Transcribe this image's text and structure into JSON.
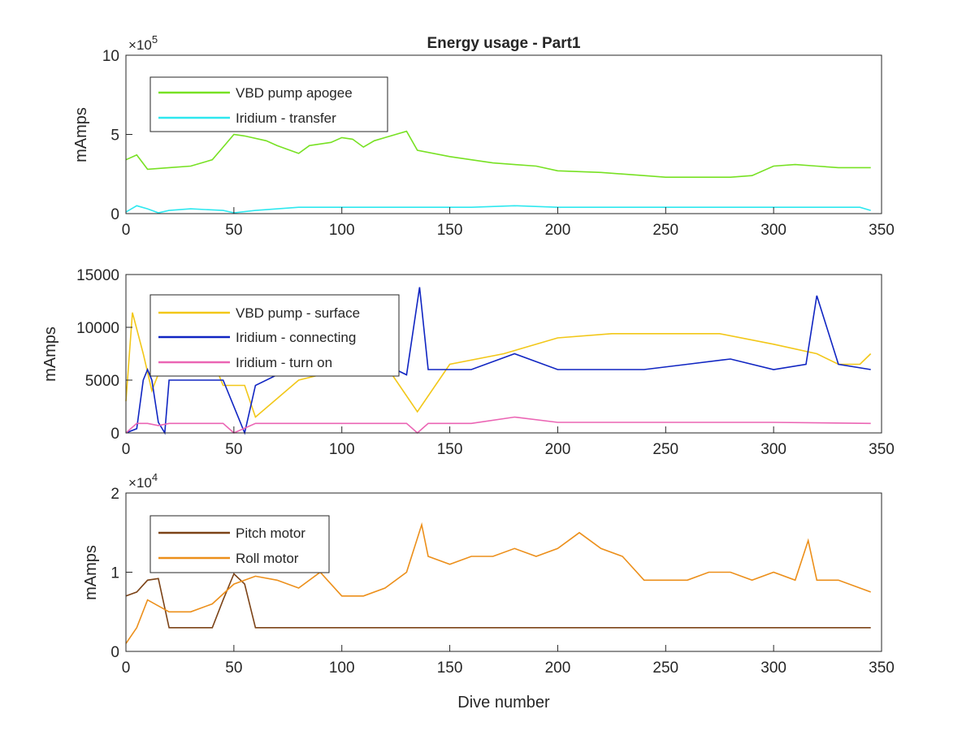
{
  "chart_data": [
    {
      "type": "line",
      "title": "Energy usage - Part1",
      "ylabel": "mAmps",
      "xlabel": "",
      "xlim": [
        0,
        350
      ],
      "ylim": [
        0,
        1000000
      ],
      "x_ticks": [
        "0",
        "50",
        "100",
        "150",
        "200",
        "250",
        "300",
        "350"
      ],
      "y_ticks": [
        "0",
        "5",
        "10"
      ],
      "y_exponent": "10",
      "y_exponent_power": "5",
      "legend_position": "top-left",
      "series": [
        {
          "name": "VBD pump apogee",
          "color": "#77e123",
          "x": [
            0,
            5,
            10,
            20,
            30,
            40,
            45,
            50,
            55,
            65,
            70,
            80,
            85,
            95,
            100,
            105,
            110,
            115,
            120,
            125,
            130,
            135,
            150,
            160,
            170,
            180,
            190,
            200,
            220,
            240,
            250,
            260,
            280,
            290,
            300,
            310,
            320,
            330,
            340,
            345
          ],
          "y": [
            340000,
            370000,
            280000,
            290000,
            300000,
            340000,
            420000,
            500000,
            490000,
            460000,
            430000,
            380000,
            430000,
            450000,
            480000,
            470000,
            420000,
            460000,
            480000,
            500000,
            520000,
            400000,
            360000,
            340000,
            320000,
            310000,
            300000,
            270000,
            260000,
            240000,
            230000,
            230000,
            230000,
            240000,
            300000,
            310000,
            300000,
            290000,
            290000,
            290000
          ]
        },
        {
          "name": "Iridium - transfer",
          "color": "#2ee8ef",
          "x": [
            0,
            5,
            10,
            15,
            20,
            30,
            45,
            50,
            60,
            80,
            100,
            120,
            140,
            160,
            180,
            200,
            220,
            240,
            260,
            280,
            300,
            320,
            340,
            345
          ],
          "y": [
            10000,
            50000,
            30000,
            5000,
            20000,
            30000,
            20000,
            5000,
            20000,
            40000,
            40000,
            40000,
            40000,
            40000,
            50000,
            40000,
            40000,
            40000,
            40000,
            40000,
            40000,
            40000,
            40000,
            20000
          ]
        }
      ]
    },
    {
      "type": "line",
      "title": "",
      "ylabel": "mAmps",
      "xlabel": "",
      "xlim": [
        0,
        350
      ],
      "ylim": [
        0,
        15000
      ],
      "x_ticks": [
        "0",
        "50",
        "100",
        "150",
        "200",
        "250",
        "300",
        "350"
      ],
      "y_ticks": [
        "0",
        "5000",
        "10000",
        "15000"
      ],
      "legend_position": "top-left",
      "series": [
        {
          "name": "VBD pump - surface",
          "color": "#f2c718",
          "x": [
            0,
            3,
            8,
            12,
            20,
            30,
            40,
            45,
            50,
            55,
            60,
            80,
            100,
            120,
            135,
            150,
            175,
            200,
            225,
            250,
            275,
            300,
            320,
            330,
            340,
            345
          ],
          "y": [
            3000,
            11400,
            7500,
            4000,
            8200,
            7000,
            7000,
            4500,
            4500,
            4500,
            1500,
            5000,
            6000,
            6500,
            2000,
            6500,
            7500,
            9000,
            9400,
            9400,
            9400,
            8400,
            7500,
            6500,
            6500,
            7500
          ]
        },
        {
          "name": "Iridium - connecting",
          "color": "#1025c2",
          "x": [
            0,
            5,
            8,
            10,
            12,
            15,
            18,
            20,
            30,
            45,
            55,
            60,
            70,
            80,
            100,
            120,
            130,
            136,
            140,
            160,
            180,
            200,
            220,
            240,
            260,
            280,
            300,
            315,
            320,
            330,
            345
          ],
          "y": [
            0,
            400,
            5000,
            6000,
            5000,
            1000,
            0,
            5000,
            5000,
            5000,
            0,
            4500,
            5500,
            5500,
            6500,
            6500,
            5500,
            13800,
            6000,
            6000,
            7500,
            6000,
            6000,
            6000,
            6500,
            7000,
            6000,
            6500,
            13000,
            6500,
            6000
          ]
        },
        {
          "name": "Iridium - turn on",
          "color": "#eb65b4",
          "x": [
            0,
            5,
            10,
            15,
            20,
            30,
            45,
            50,
            60,
            80,
            100,
            130,
            135,
            140,
            160,
            180,
            200,
            250,
            300,
            345
          ],
          "y": [
            0,
            900,
            900,
            700,
            900,
            900,
            900,
            0,
            900,
            900,
            900,
            900,
            0,
            900,
            900,
            1500,
            1000,
            1000,
            1000,
            900
          ]
        }
      ]
    },
    {
      "type": "line",
      "title": "",
      "ylabel": "mAmps",
      "xlabel": "Dive number",
      "xlim": [
        0,
        350
      ],
      "ylim": [
        0,
        20000
      ],
      "x_ticks": [
        "0",
        "50",
        "100",
        "150",
        "200",
        "250",
        "300",
        "350"
      ],
      "y_ticks": [
        "0",
        "1",
        "2"
      ],
      "y_exponent": "10",
      "y_exponent_power": "4",
      "legend_position": "top-left",
      "series": [
        {
          "name": "Pitch motor",
          "color": "#7c4317",
          "x": [
            0,
            5,
            10,
            15,
            20,
            30,
            40,
            45,
            50,
            55,
            60,
            80,
            100,
            120,
            150,
            175,
            200,
            225,
            250,
            275,
            300,
            325,
            345
          ],
          "y": [
            7000,
            7500,
            9000,
            9200,
            3000,
            3000,
            3000,
            6500,
            9800,
            8500,
            3000,
            3000,
            3000,
            3000,
            3000,
            3000,
            3000,
            3000,
            3000,
            3000,
            3000,
            3000,
            3000
          ]
        },
        {
          "name": "Roll motor",
          "color": "#ec8f1a",
          "x": [
            0,
            5,
            10,
            20,
            30,
            40,
            50,
            60,
            70,
            80,
            90,
            100,
            110,
            120,
            130,
            137,
            140,
            150,
            160,
            170,
            180,
            190,
            200,
            210,
            220,
            230,
            240,
            250,
            260,
            270,
            280,
            290,
            300,
            310,
            316,
            320,
            330,
            340,
            345
          ],
          "y": [
            1000,
            3000,
            6500,
            5000,
            5000,
            6000,
            8500,
            9500,
            9000,
            8000,
            10000,
            7000,
            7000,
            8000,
            10000,
            16000,
            12000,
            11000,
            12000,
            12000,
            13000,
            12000,
            13000,
            15000,
            13000,
            12000,
            9000,
            9000,
            9000,
            10000,
            10000,
            9000,
            10000,
            9000,
            14000,
            9000,
            9000,
            8000,
            7500
          ]
        }
      ]
    }
  ]
}
